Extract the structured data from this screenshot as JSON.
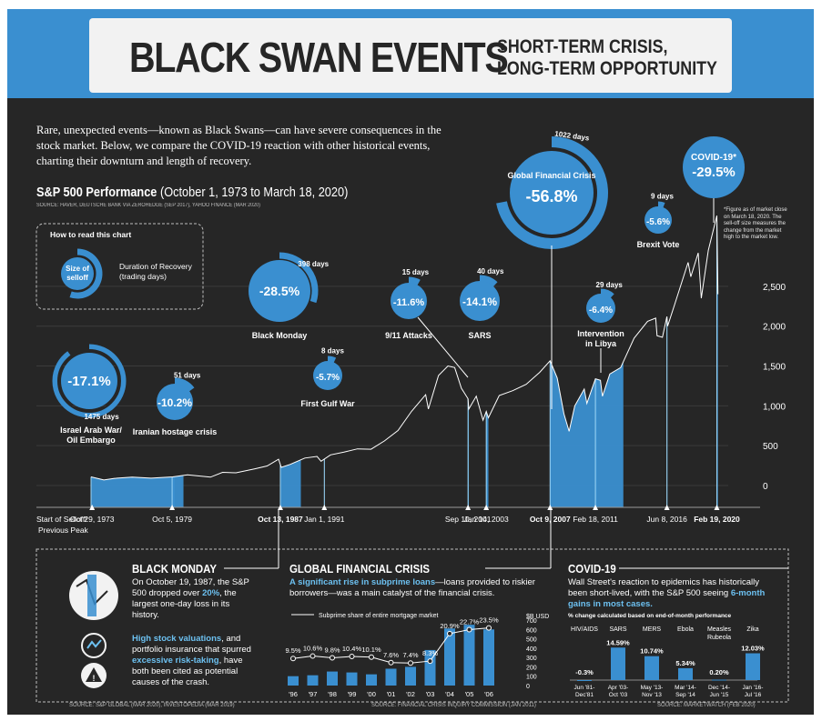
{
  "header": {
    "title": "BLACK SWAN EVENTS",
    "subtitle_line1": "SHORT-TERM CRISIS,",
    "subtitle_line2": "LONG-TERM OPPORTUNITY"
  },
  "intro": "Rare, unexpected events—known as Black Swans—can have severe consequences in the stock market. Below, we compare the COVID-19 reaction with other historical events, charting their downturn and length of recovery.",
  "colors": {
    "accent": "#3a8fd0",
    "light_accent": "#6cc0f0",
    "background": "#262626",
    "card": "#f2f2f2"
  },
  "chart_data": [
    {
      "type": "line",
      "title": "S&P 500 Performance (October 1, 1973 to March 18, 2020)",
      "source": "SOURCE: HAVER, DEUTSCHE BANK VIA ZEROHEDGE (SEP 2017), YAHOO FINANCE (MAR 2020)",
      "footnote": "*Figure as of market close on March 18, 2020. The sell-off size measures the change from the market high to the market low.",
      "ylim": [
        0,
        3400
      ],
      "yticks": [
        0,
        500,
        1000,
        1500,
        2000,
        2500
      ],
      "xlim": [
        1973.75,
        2020.3
      ],
      "x_tick_labels": [
        {
          "x": 1973.75,
          "label": "Start of Selloff/ Previous Peak",
          "bold": false
        },
        {
          "x": 1973.83,
          "label": "Oct 29, 1973",
          "bold": false
        },
        {
          "x": 1979.76,
          "label": "Oct 5, 1979",
          "bold": false
        },
        {
          "x": 1987.78,
          "label": "Oct 13, 1987",
          "bold": true
        },
        {
          "x": 1991.04,
          "label": "Jan 1, 1991",
          "bold": false
        },
        {
          "x": 2001.69,
          "label": "Sep 10, 2001",
          "bold": false
        },
        {
          "x": 2003.04,
          "label": "Jan 14, 2003",
          "bold": false
        },
        {
          "x": 2007.77,
          "label": "Oct 9, 2007",
          "bold": true
        },
        {
          "x": 2011.13,
          "label": "Feb 18, 2011",
          "bold": false
        },
        {
          "x": 2016.43,
          "label": "Jun 8, 2016",
          "bold": false
        },
        {
          "x": 2020.13,
          "label": "Feb 19, 2020",
          "bold": true
        }
      ],
      "series": [
        {
          "name": "S&P 500",
          "points": [
            [
              1973.75,
              108
            ],
            [
              1974.7,
              70
            ],
            [
              1975.5,
              90
            ],
            [
              1976.8,
              105
            ],
            [
              1978.2,
              92
            ],
            [
              1979.8,
              108
            ],
            [
              1980.9,
              135
            ],
            [
              1982.6,
              105
            ],
            [
              1983.5,
              165
            ],
            [
              1984.5,
              160
            ],
            [
              1985.9,
              210
            ],
            [
              1986.8,
              245
            ],
            [
              1987.65,
              330
            ],
            [
              1987.85,
              228
            ],
            [
              1988.5,
              265
            ],
            [
              1989.6,
              345
            ],
            [
              1990.5,
              365
            ],
            [
              1990.8,
              305
            ],
            [
              1991.5,
              385
            ],
            [
              1992.5,
              420
            ],
            [
              1993.5,
              460
            ],
            [
              1994.5,
              455
            ],
            [
              1995.5,
              560
            ],
            [
              1996.5,
              690
            ],
            [
              1997.5,
              930
            ],
            [
              1998.55,
              1140
            ],
            [
              1998.75,
              960
            ],
            [
              1999.5,
              1380
            ],
            [
              2000.2,
              1500
            ],
            [
              2000.7,
              1480
            ],
            [
              2001.2,
              1220
            ],
            [
              2001.69,
              1090
            ],
            [
              2001.75,
              960
            ],
            [
              2002.3,
              1120
            ],
            [
              2002.8,
              820
            ],
            [
              2003.04,
              930
            ],
            [
              2003.2,
              850
            ],
            [
              2004.0,
              1130
            ],
            [
              2005.0,
              1190
            ],
            [
              2006.0,
              1270
            ],
            [
              2007.0,
              1420
            ],
            [
              2007.77,
              1565
            ],
            [
              2008.3,
              1350
            ],
            [
              2008.8,
              900
            ],
            [
              2009.18,
              680
            ],
            [
              2009.6,
              1000
            ],
            [
              2010.3,
              1210
            ],
            [
              2010.5,
              1030
            ],
            [
              2011.13,
              1340
            ],
            [
              2011.5,
              1320
            ],
            [
              2011.65,
              1120
            ],
            [
              2012.2,
              1400
            ],
            [
              2013.0,
              1480
            ],
            [
              2014.0,
              1850
            ],
            [
              2015.0,
              2060
            ],
            [
              2015.6,
              2100
            ],
            [
              2015.7,
              1880
            ],
            [
              2016.1,
              1860
            ],
            [
              2016.43,
              2120
            ],
            [
              2016.48,
              2000
            ],
            [
              2017.0,
              2270
            ],
            [
              2018.0,
              2800
            ],
            [
              2018.2,
              2620
            ],
            [
              2018.75,
              2920
            ],
            [
              2018.98,
              2350
            ],
            [
              2019.5,
              2950
            ],
            [
              2020.13,
              3386
            ],
            [
              2020.21,
              2400
            ]
          ]
        }
      ],
      "events": [
        {
          "name": "Israel Arab War/ Oil Embargo",
          "start": 1973.75,
          "end": 1980.6,
          "selloff": "-17.1%",
          "days": "1475 days"
        },
        {
          "name": "Iranian hostage crisis",
          "start": 1979.76,
          "end": 1979.96,
          "selloff": "-10.2%",
          "days": "51 days"
        },
        {
          "name": "Black Monday",
          "start": 1987.78,
          "end": 1989.3,
          "selloff": "-28.5%",
          "days": "398 days"
        },
        {
          "name": "First Gulf War",
          "start": 1991.04,
          "end": 1991.07,
          "selloff": "-5.7%",
          "days": "8 days"
        },
        {
          "name": "9/11 Attacks",
          "start": 2001.69,
          "end": 2001.75,
          "selloff": "-11.6%",
          "days": "15 days"
        },
        {
          "name": "SARS",
          "start": 2003.04,
          "end": 2003.2,
          "selloff": "-14.1%",
          "days": "40 days"
        },
        {
          "name": "Global Financial Crisis",
          "start": 2007.77,
          "end": 2013.2,
          "selloff": "-56.8%",
          "days": "1022 days"
        },
        {
          "name": "Intervention in Libya",
          "start": 2011.13,
          "end": 2011.25,
          "selloff": "-6.4%",
          "days": "29 days"
        },
        {
          "name": "Brexit Vote",
          "start": 2016.43,
          "end": 2016.47,
          "selloff": "-5.6%",
          "days": "9 days"
        },
        {
          "name": "COVID-19*",
          "start": 2020.13,
          "end": 2020.21,
          "selloff": "-29.5%",
          "days": ""
        }
      ]
    },
    {
      "type": "bar",
      "title": "Subprime share of entire mortgage market",
      "categories": [
        "'96",
        "'97",
        "'98",
        "'99",
        "'00",
        "'01",
        "'02",
        "'03",
        "'04",
        "'05",
        "'06"
      ],
      "values": [
        100,
        110,
        150,
        140,
        120,
        180,
        200,
        380,
        610,
        650,
        600
      ],
      "line_values": [
        9.5,
        10.6,
        9.8,
        10.4,
        10.1,
        7.6,
        7.4,
        8.3,
        20.9,
        22.7,
        23.5
      ],
      "line_labels": [
        "9.5%",
        "10.6%",
        "9.8%",
        "10.4%",
        "10.1%",
        "7.6%",
        "7.4%",
        "8.3%",
        "20.9%",
        "22.7%",
        "23.5%"
      ],
      "y2_label": "$B USD",
      "ylim": [
        0,
        700
      ],
      "yticks": [
        0,
        100,
        200,
        300,
        400,
        500,
        600,
        700
      ],
      "ytick_labels": [
        "0",
        "100",
        "200",
        "300",
        "400",
        "500",
        "600",
        "700"
      ]
    },
    {
      "type": "bar",
      "title": "% change calculated based on end-of-month performance",
      "categories": [
        "HIV/AIDS",
        "SARS",
        "MERS",
        "Ebola",
        "Measles Rubeola",
        "Zika"
      ],
      "periods": [
        "Jun '81- Dec'81",
        "Apr '03- Oct '03",
        "May '13- Nov '13",
        "Mar '14- Sep '14",
        "Dec '14- Jun '15",
        "Jan '16- Jul '16"
      ],
      "values": [
        -0.3,
        14.59,
        10.74,
        5.34,
        0.2,
        12.03
      ],
      "labels": [
        "-0.3%",
        "14.59%",
        "10.74%",
        "5.34%",
        "0.20%",
        "12.03%"
      ]
    }
  ],
  "legend": {
    "title": "How to read this chart",
    "size_label": "Size of selloff",
    "duration_label": "Duration of Recovery (trading days)"
  },
  "bottom": {
    "black_monday": {
      "title": "BLACK MONDAY",
      "p1_a": "On October 19, 1987, the S&P 500 dropped over ",
      "p1_hl": "20%",
      "p1_b": ", the largest one-day loss in its history.",
      "p2_hl1": "High stock valuations",
      "p2_a": ", and portfolio insurance that spurred ",
      "p2_hl2": "excessive risk-taking",
      "p2_b": ", have both been cited as potential causes of the crash.",
      "source": "SOURCE: S&P GLOBAL (MAR 2020), INVESTOPEDIA (MAR 2019)"
    },
    "gfc": {
      "title": "GLOBAL FINANCIAL CRISIS",
      "text_hl": "A significant rise in subprime loans",
      "text": "—loans provided to riskier borrowers—was a main catalyst of the financial crisis.",
      "legend": "Subprime share of entire mortgage market",
      "source": "SOURCE: FINANCIAL CRISIS INQUIRY COMMISSION (JAN 2011)"
    },
    "covid": {
      "title": "COVID-19",
      "text_a": "Wall Street's reaction to epidemics has historically been short-lived, with the S&P 500 seeing ",
      "text_hl": "6-month gains in most cases.",
      "note": "% change calculated based on end-of-month performance",
      "source": "SOURCE: MARKETWATCH (FEB 2020)"
    }
  }
}
